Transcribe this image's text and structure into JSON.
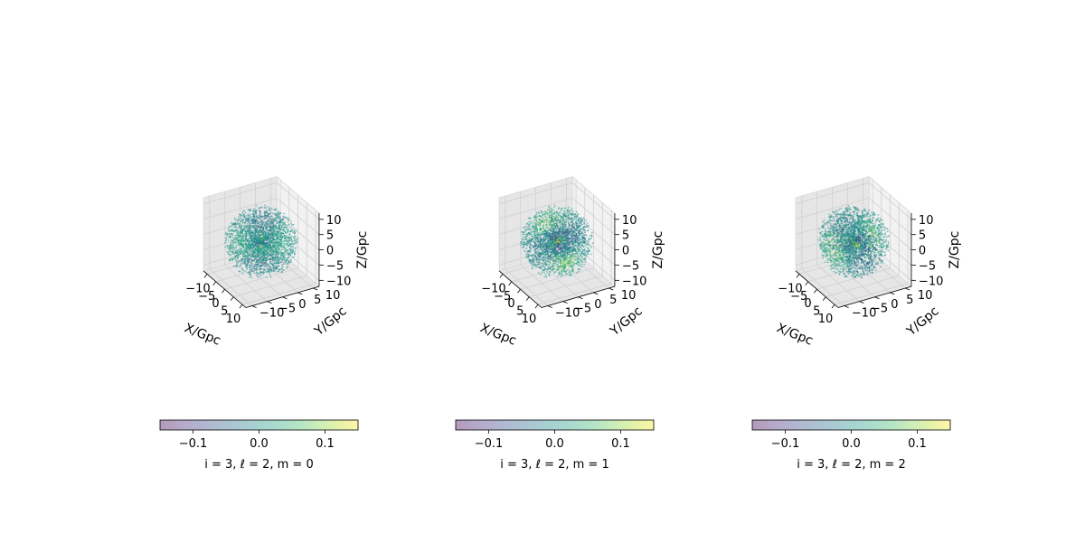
{
  "chart_data": [
    {
      "type": "scatter",
      "projection": "3d",
      "pattern": "m0",
      "xlabel": "X/Gpc",
      "ylabel": "Y/Gpc",
      "zlabel": "Z/Gpc",
      "xlim": [
        -12,
        12
      ],
      "ylim": [
        -12,
        12
      ],
      "zlim": [
        -12,
        12
      ],
      "xticks": [
        -10,
        -5,
        0,
        5,
        10
      ],
      "yticks": [
        -10,
        -5,
        0,
        5,
        10
      ],
      "zticks": [
        -10,
        -5,
        0,
        5,
        10
      ],
      "colorbar": {
        "vmin": -0.15,
        "vmax": 0.15,
        "ticks": [
          "−0.1",
          "0.0",
          "0.1"
        ],
        "label": "i = 3, ℓ = 2, m = 0",
        "colormap": "viridis",
        "alpha": 0.4
      }
    },
    {
      "type": "scatter",
      "projection": "3d",
      "pattern": "m1",
      "xlabel": "X/Gpc",
      "ylabel": "Y/Gpc",
      "zlabel": "Z/Gpc",
      "xlim": [
        -12,
        12
      ],
      "ylim": [
        -12,
        12
      ],
      "zlim": [
        -12,
        12
      ],
      "xticks": [
        -10,
        -5,
        0,
        5,
        10
      ],
      "yticks": [
        -10,
        -5,
        0,
        5,
        10
      ],
      "zticks": [
        -10,
        -5,
        0,
        5,
        10
      ],
      "colorbar": {
        "vmin": -0.15,
        "vmax": 0.15,
        "ticks": [
          "−0.1",
          "0.0",
          "0.1"
        ],
        "label": "i = 3, ℓ = 2, m = 1",
        "colormap": "viridis",
        "alpha": 0.4
      }
    },
    {
      "type": "scatter",
      "projection": "3d",
      "pattern": "m2",
      "xlabel": "X/Gpc",
      "ylabel": "Y/Gpc",
      "zlabel": "Z/Gpc",
      "xlim": [
        -12,
        12
      ],
      "ylim": [
        -12,
        12
      ],
      "zlim": [
        -12,
        12
      ],
      "xticks": [
        -10,
        -5,
        0,
        5,
        10
      ],
      "yticks": [
        -10,
        -5,
        0,
        5,
        10
      ],
      "zticks": [
        -10,
        -5,
        0,
        5,
        10
      ],
      "colorbar": {
        "vmin": -0.15,
        "vmax": 0.15,
        "ticks": [
          "−0.1",
          "0.0",
          "0.1"
        ],
        "label": "i = 3, ℓ = 2, m = 2",
        "colormap": "viridis",
        "alpha": 0.4
      }
    }
  ],
  "colors": {
    "pane": "#f2f2f2",
    "pane_side": "#e6e6e6",
    "grid": "#d0d0d0",
    "viridis": [
      "#440154",
      "#482878",
      "#3e4a89",
      "#31688e",
      "#26828e",
      "#1f9e89",
      "#35b779",
      "#6ece58",
      "#b5de2b",
      "#fde725"
    ]
  }
}
